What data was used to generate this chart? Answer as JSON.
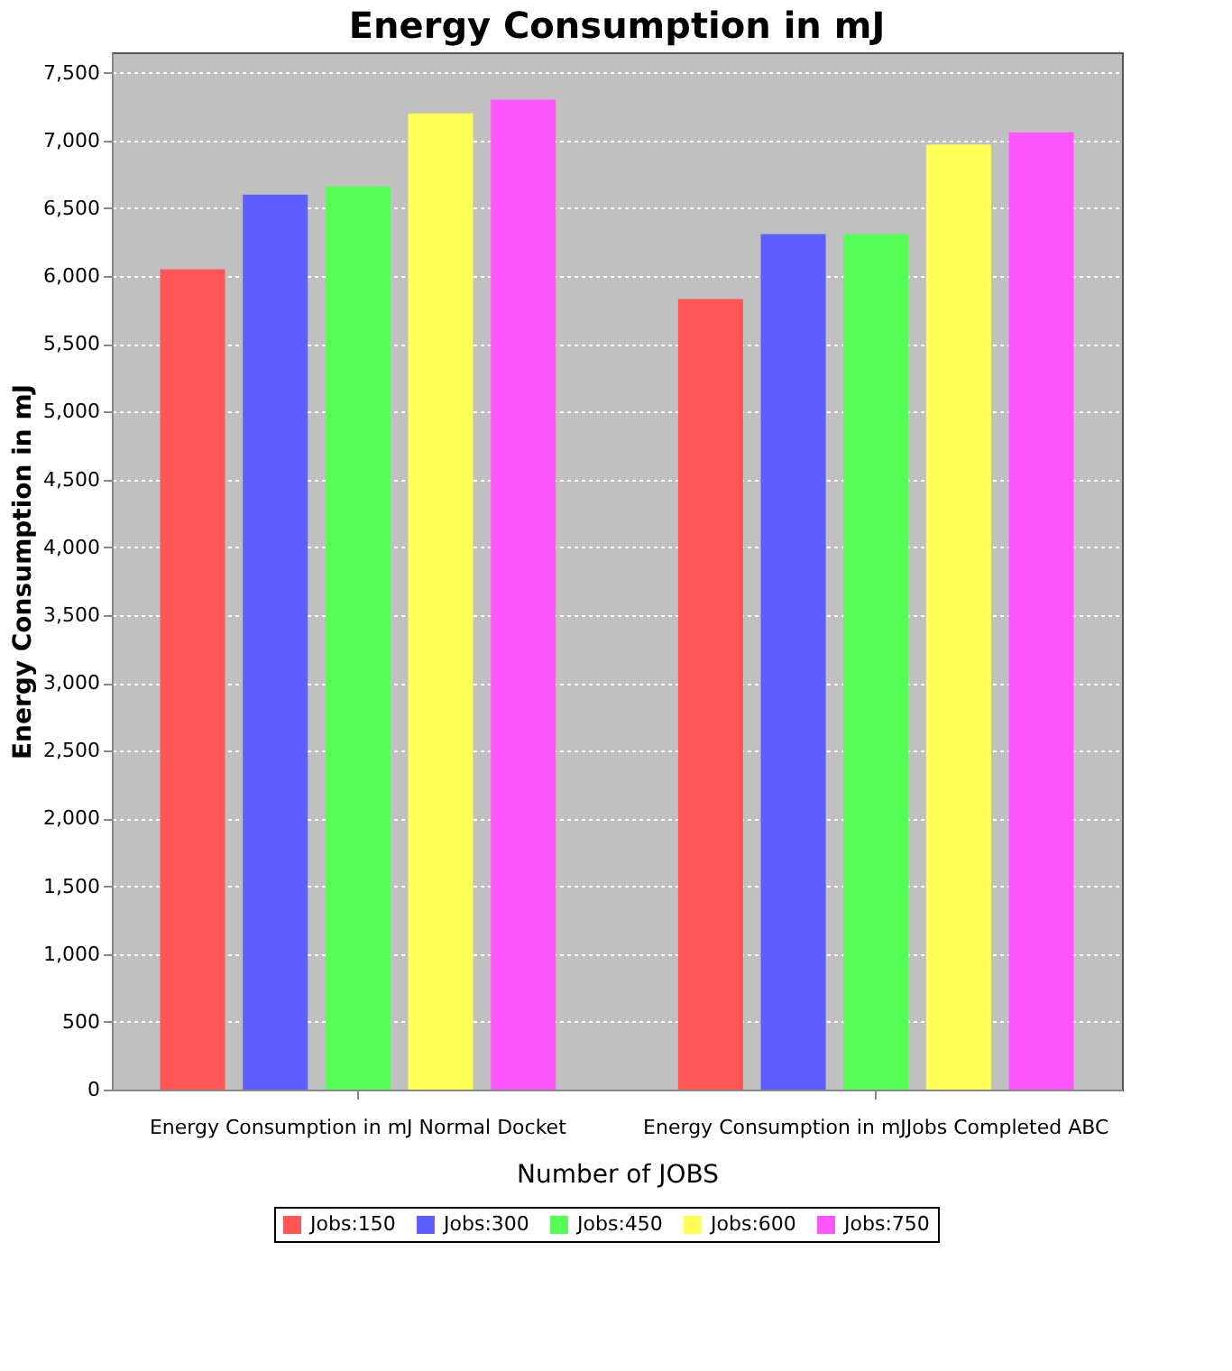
{
  "chart_data": {
    "type": "bar",
    "title": "Energy Consumption in mJ",
    "xlabel": "Number of JOBS",
    "ylabel": "Energy Consumption in mJ",
    "categories": [
      "Energy Consumption in mJ Normal Docket",
      "Energy Consumption in mJJobs Completed ABC"
    ],
    "series": [
      {
        "name": "Jobs:150",
        "color": "#ff5555",
        "values": [
          6050,
          5830
        ]
      },
      {
        "name": "Jobs:300",
        "color": "#5f5fff",
        "values": [
          6600,
          6310
        ]
      },
      {
        "name": "Jobs:450",
        "color": "#55ff55",
        "values": [
          6660,
          6310
        ]
      },
      {
        "name": "Jobs:600",
        "color": "#ffff55",
        "values": [
          7200,
          6970
        ]
      },
      {
        "name": "Jobs:750",
        "color": "#ff55ff",
        "values": [
          7300,
          7060
        ]
      }
    ],
    "ylim": [
      0,
      7650
    ],
    "yticks": [
      0,
      500,
      {
        "value": 1000,
        "label": "1,000"
      },
      {
        "value": 1500,
        "label": "1,500"
      },
      {
        "value": 2000,
        "label": "2,000"
      },
      {
        "value": 2500,
        "label": "2,500"
      },
      {
        "value": 3000,
        "label": "3,000"
      },
      {
        "value": 3500,
        "label": "3,500"
      },
      {
        "value": 4000,
        "label": "4,000"
      },
      {
        "value": 4500,
        "label": "4,500"
      },
      {
        "value": 5000,
        "label": "5,000"
      },
      {
        "value": 5500,
        "label": "5,500"
      },
      {
        "value": 6000,
        "label": "6,000"
      },
      {
        "value": 6500,
        "label": "6,500"
      },
      {
        "value": 7000,
        "label": "7,000"
      },
      {
        "value": 7500,
        "label": "7,500"
      }
    ],
    "grid": "y",
    "legend": "bottom"
  }
}
